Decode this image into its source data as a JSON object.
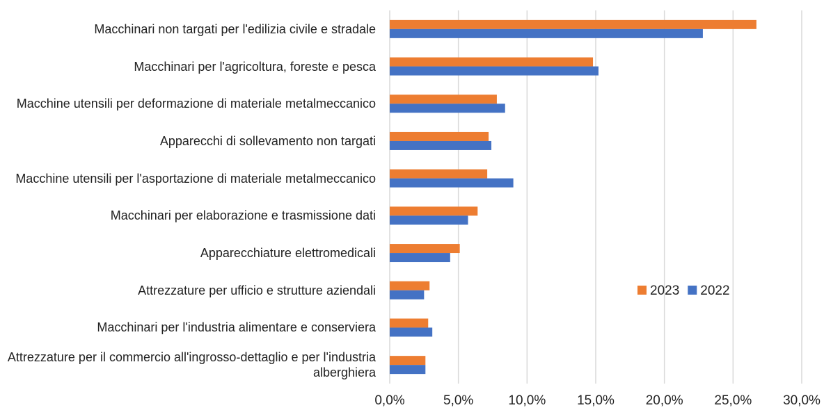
{
  "chart_data": {
    "type": "barh",
    "categories": [
      "Macchinari non targati per l'edilizia civile e stradale",
      "Macchinari per l'agricoltura, foreste e pesca",
      "Macchine utensili per deformazione di materiale metalmeccanico",
      "Apparecchi di sollevamento non targati",
      "Macchine utensili per l'asportazione di materiale metalmeccanico",
      "Macchinari per elaborazione e trasmissione dati",
      "Apparecchiature elettromedicali",
      "Attrezzature per ufficio e strutture aziendali",
      "Macchinari per l'industria alimentare e conserviera",
      "Attrezzature per il commercio all'ingrosso-dettaglio e per l'industria alberghiera"
    ],
    "series": [
      {
        "name": "2023",
        "color": "#ed7d31",
        "values": [
          26.7,
          14.8,
          7.8,
          7.2,
          7.1,
          6.4,
          5.1,
          2.9,
          2.8,
          2.6
        ]
      },
      {
        "name": "2022",
        "color": "#4472c4",
        "values": [
          22.8,
          15.2,
          8.4,
          7.4,
          9.0,
          5.7,
          4.4,
          2.5,
          3.1,
          2.6
        ]
      }
    ],
    "xlim": [
      0,
      30
    ],
    "xticks": [
      {
        "value": 0,
        "label": "0,0%"
      },
      {
        "value": 5,
        "label": "5,0%"
      },
      {
        "value": 10,
        "label": "10,0%"
      },
      {
        "value": 15,
        "label": "15,0%"
      },
      {
        "value": 20,
        "label": "20,0%"
      },
      {
        "value": 25,
        "label": "25,0%"
      },
      {
        "value": 30,
        "label": "30,0%"
      }
    ],
    "grid": true,
    "legend": "right"
  }
}
